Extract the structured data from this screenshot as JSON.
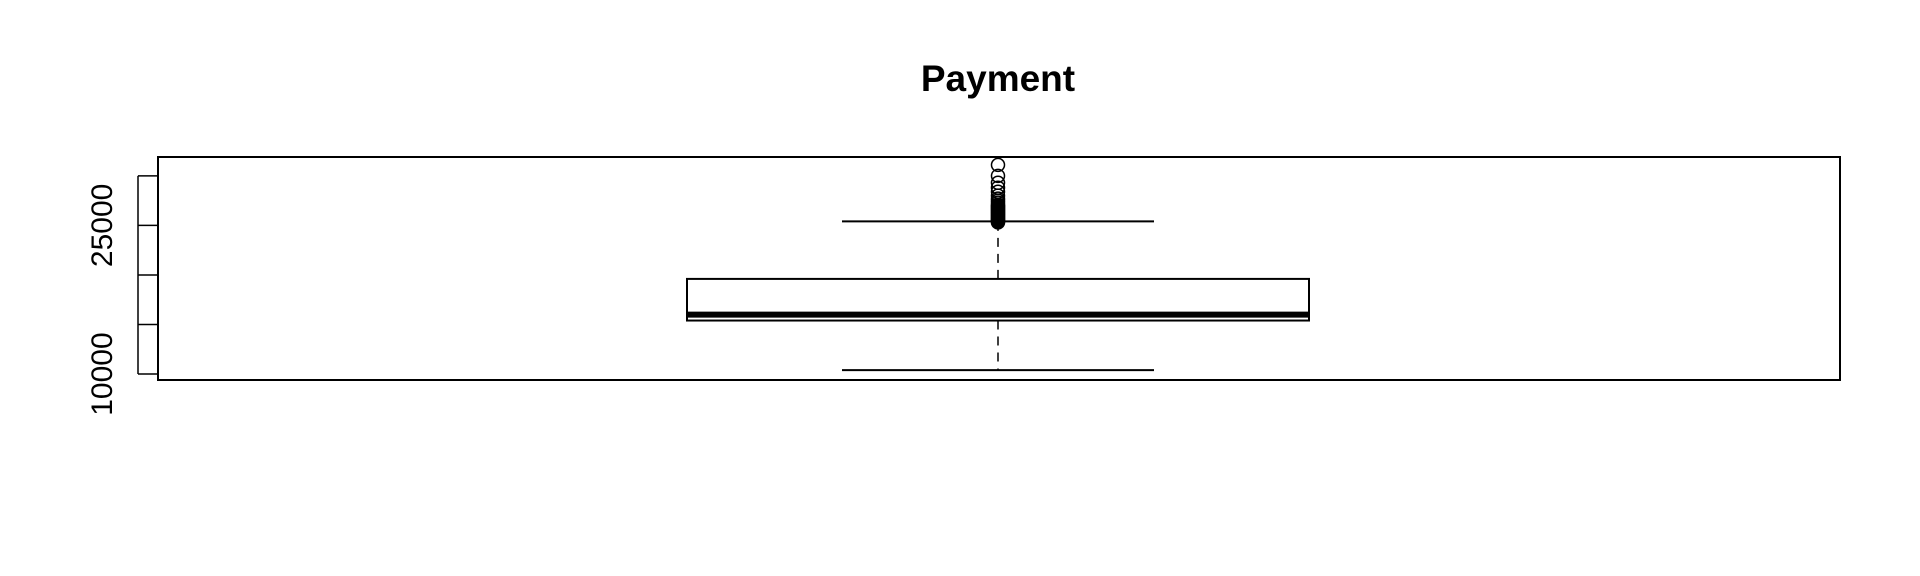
{
  "chart_data": {
    "type": "box",
    "title": "Payment",
    "xlabel": "",
    "ylabel": "",
    "ylim": [
      9400,
      31900
    ],
    "yticks": [
      10000,
      15000,
      20000,
      25000,
      30000
    ],
    "ytick_labels": [
      "10000",
      "",
      "",
      "25000",
      ""
    ],
    "box": {
      "whisker_low": 10400,
      "q1": 15400,
      "median": 16000,
      "q3": 19600,
      "whisker_high": 25400
    },
    "outliers": [
      25300,
      25400,
      25500,
      25600,
      25700,
      25800,
      25900,
      26000,
      26100,
      26200,
      26300,
      26400,
      26500,
      26600,
      26700,
      26800,
      26900,
      27000,
      27100,
      27300,
      27500,
      27700,
      28000,
      28400,
      28800,
      29300,
      30000,
      31100
    ],
    "grid": false,
    "legend": "none"
  }
}
